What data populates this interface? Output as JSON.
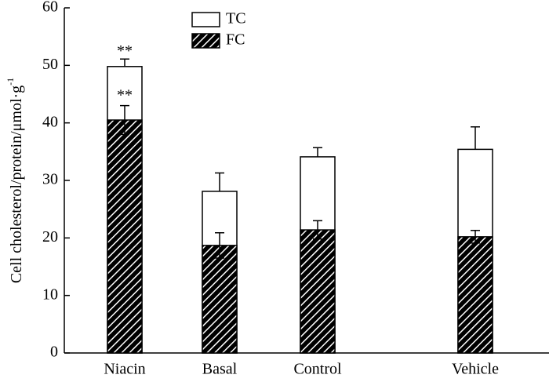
{
  "chart_data": {
    "type": "bar",
    "overlap": true,
    "y_label": "Cell cholesterol/protein/μmol·g",
    "y_label_superscript": "-1",
    "categories": [
      "Niacin",
      "Basal",
      "Control",
      "Vehicle"
    ],
    "series": [
      {
        "name": "TC",
        "color": "#ffffff",
        "hatch": false,
        "values": [
          49.8,
          28.1,
          34.1,
          35.4
        ],
        "errors": [
          1.3,
          3.2,
          1.6,
          3.9
        ],
        "marks": [
          "**",
          null,
          null,
          null
        ]
      },
      {
        "name": "FC",
        "color": "#000000",
        "hatch": true,
        "values": [
          40.5,
          18.7,
          21.4,
          20.2
        ],
        "errors": [
          2.5,
          2.2,
          1.6,
          1.1
        ],
        "marks": [
          "**",
          null,
          null,
          null
        ]
      }
    ],
    "ylim": [
      0,
      60
    ],
    "yticks": [
      0,
      10,
      20,
      30,
      40,
      50,
      60
    ],
    "legend": "top"
  }
}
